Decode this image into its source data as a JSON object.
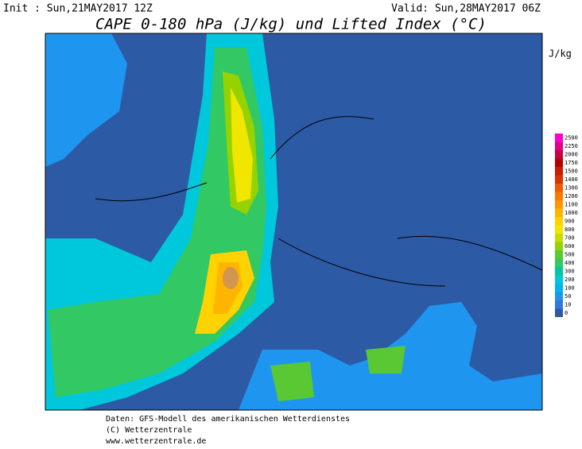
{
  "header": {
    "init": "Init : Sun,21MAY2017 12Z",
    "valid": "Valid: Sun,28MAY2017 06Z",
    "title": "CAPE 0-180 hPa (J/kg) und Lifted Index (°C)"
  },
  "colorbar": {
    "unit": "J/kg",
    "levels": [
      2500,
      2250,
      2000,
      1750,
      1500,
      1400,
      1300,
      1200,
      1100,
      1000,
      900,
      800,
      700,
      600,
      500,
      400,
      300,
      200,
      100,
      50,
      10,
      0
    ],
    "colors": [
      "#ff00cc",
      "#e0008a",
      "#c8003c",
      "#b40000",
      "#c81e00",
      "#dc3200",
      "#f05a00",
      "#ff7800",
      "#ff9600",
      "#ffb400",
      "#ffd200",
      "#f0e600",
      "#c8dc00",
      "#96d200",
      "#5ac832",
      "#32c864",
      "#00c8a0",
      "#00c8dc",
      "#00b4f0",
      "#1e96f0",
      "#3278dc",
      "#2d5aa5"
    ]
  },
  "footer": [
    "Daten: GFS-Modell des amerikanischen Wetterdienstes",
    "(C) Wetterzentrale",
    "www.wetterzentrale.de"
  ]
}
